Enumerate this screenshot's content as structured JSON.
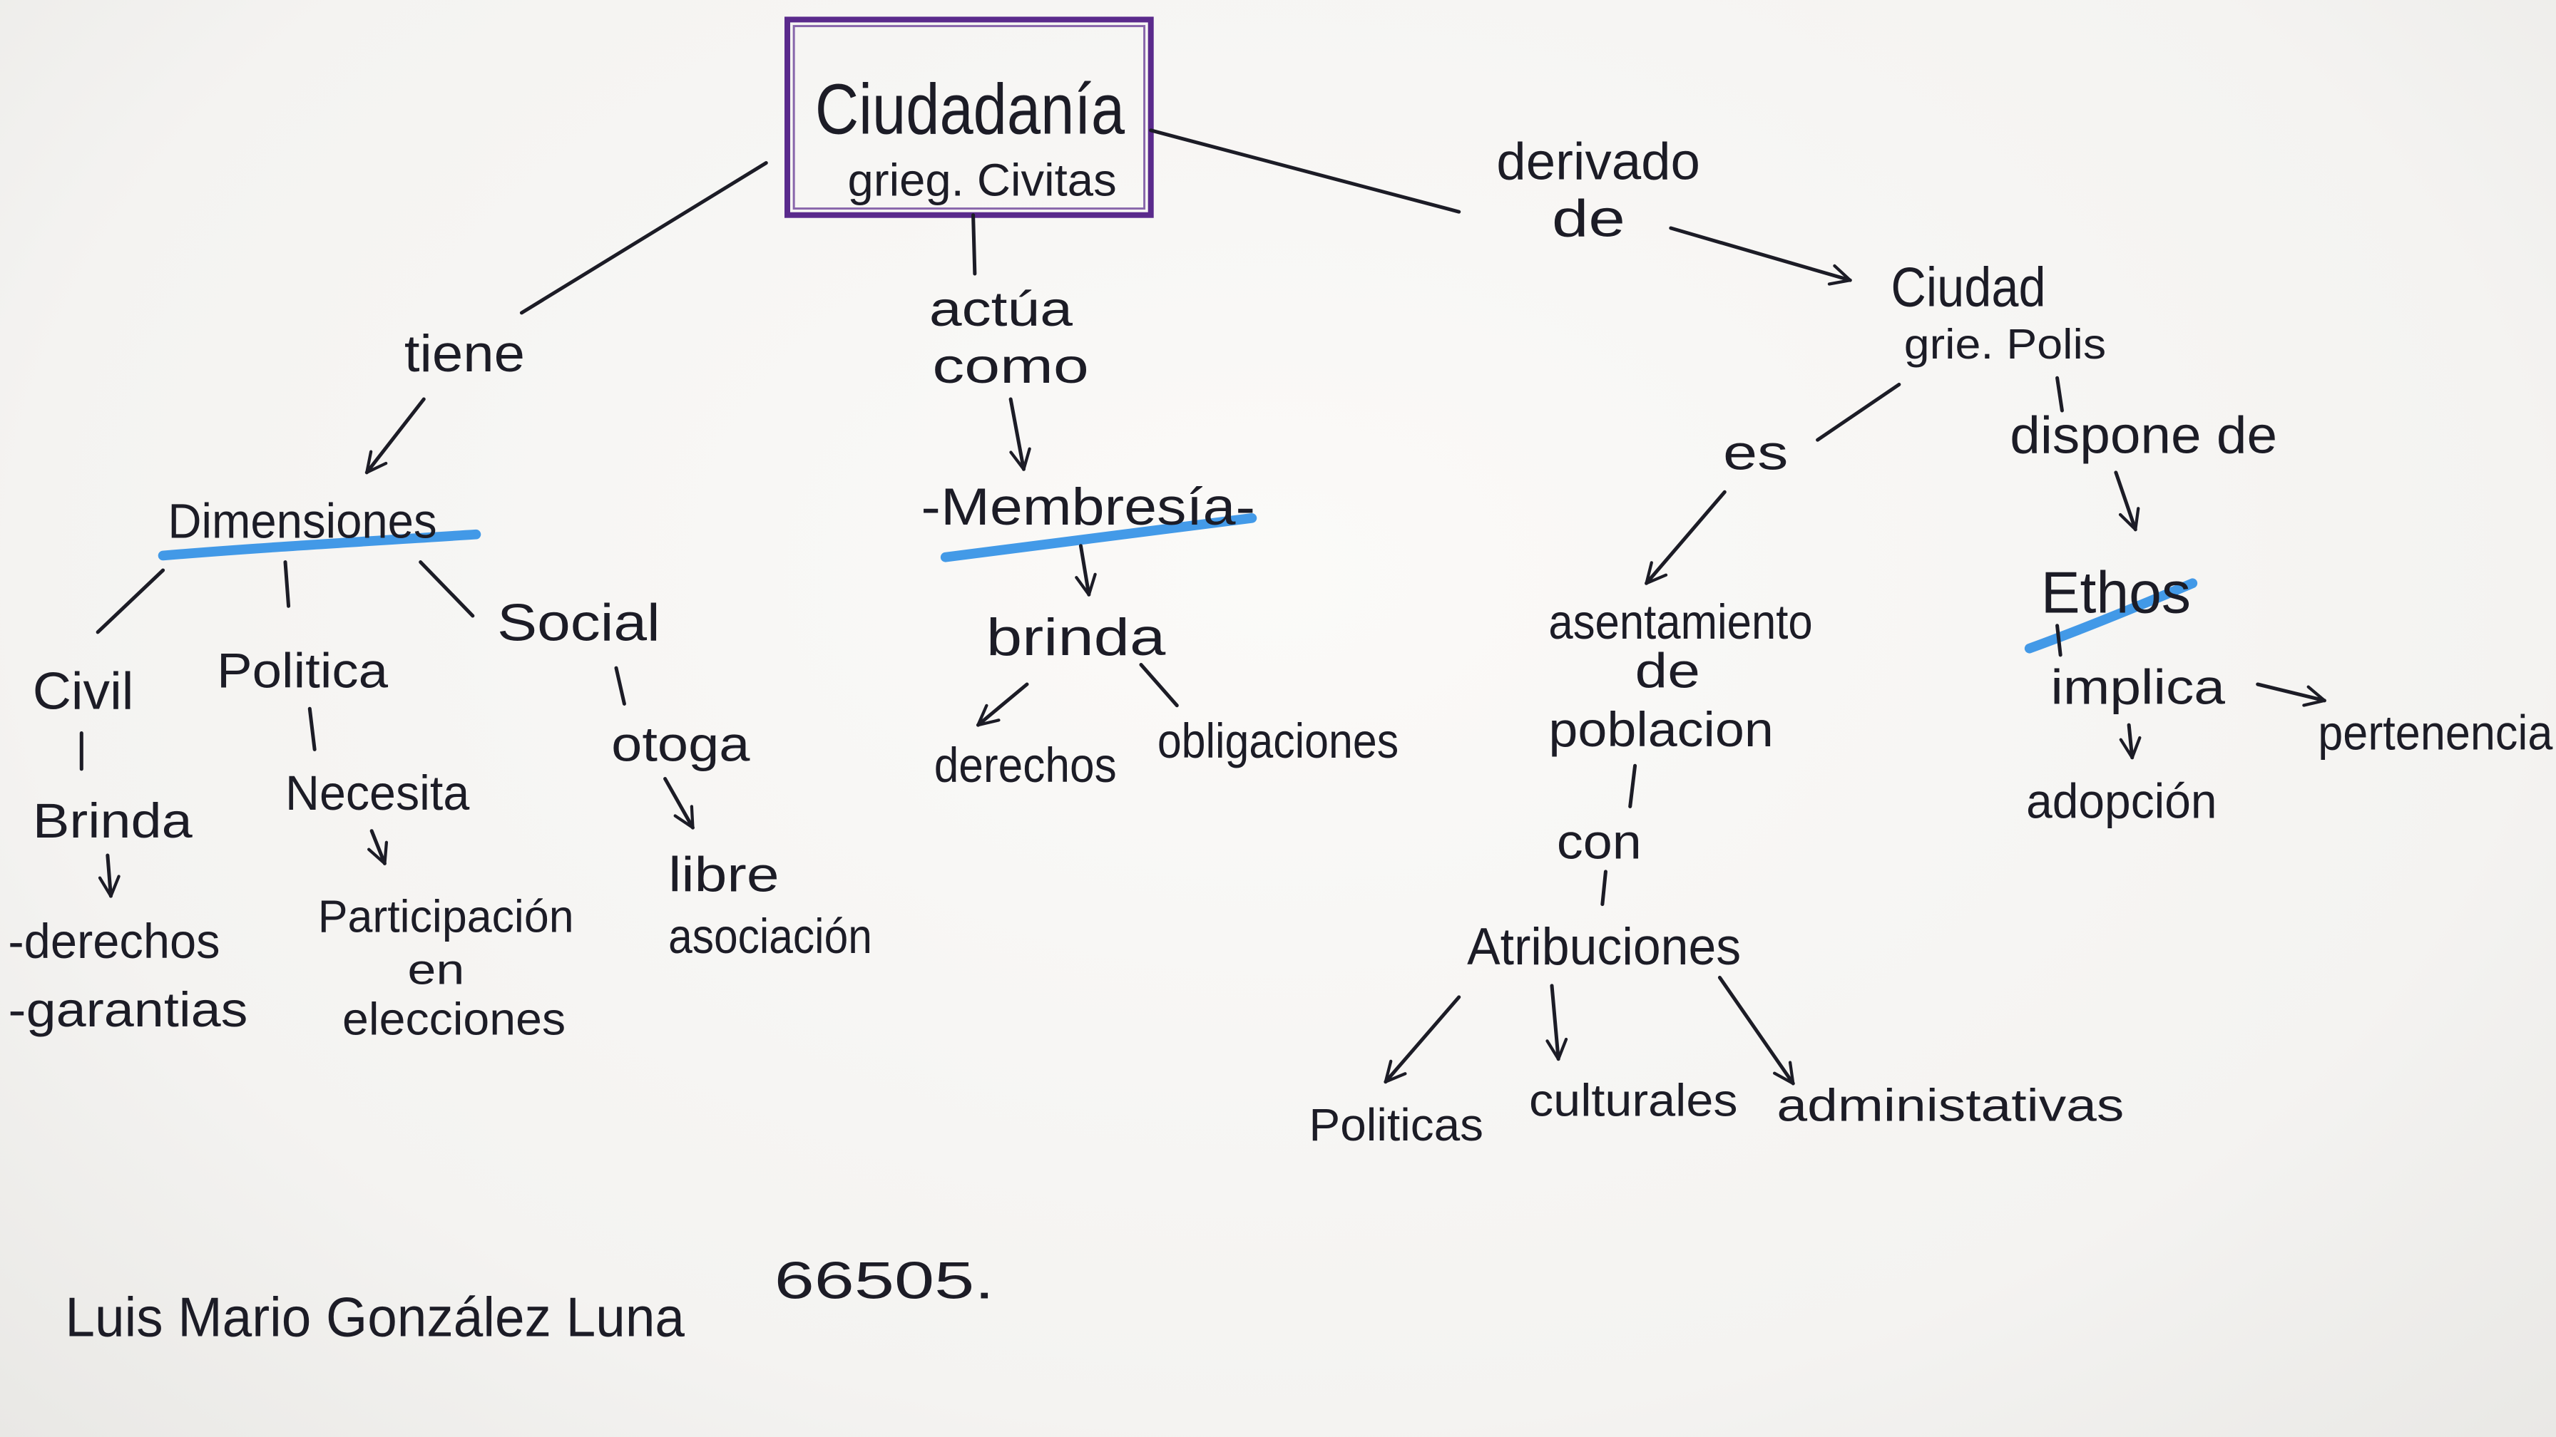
{
  "colors": {
    "paper": "#f4f3f1",
    "ink": "#1c1c26",
    "frame": "#5a2a8c",
    "highlight": "#2f8fe6"
  },
  "root": {
    "title": "Ciudadanía",
    "etymology": "grieg. Civitas"
  },
  "left": {
    "link": "tiene",
    "node": "Dimensiones",
    "civil": {
      "label": "Civil",
      "link": "Brinda",
      "items": [
        "-derechos",
        "-garantias"
      ]
    },
    "politica": {
      "label": "Politica",
      "link": "Necesita",
      "result": [
        "Participación",
        "en",
        "elecciones"
      ]
    },
    "social": {
      "label": "Social",
      "link": "otoga",
      "result": [
        "libre",
        "asociación"
      ]
    }
  },
  "center": {
    "link": [
      "actúa",
      "como"
    ],
    "node": "-Membresía-",
    "sublink": "brinda",
    "items": [
      "derechos",
      "obligaciones"
    ]
  },
  "right": {
    "link": [
      "derivado",
      "de"
    ],
    "node": "Ciudad",
    "etymology": "grie. Polis",
    "es": {
      "link": "es",
      "node": [
        "asentamiento",
        "de",
        "poblacion"
      ],
      "sublink": "con",
      "attr": "Atribuciones",
      "items": [
        "Politicas",
        "culturales",
        "administativas"
      ]
    },
    "dispone": {
      "link": "dispone de",
      "node": "Ethos",
      "sublink": "implica",
      "items": [
        "pertenencia",
        "adopción"
      ]
    }
  },
  "author": {
    "name": "Luis Mario González Luna",
    "id": "66505."
  }
}
